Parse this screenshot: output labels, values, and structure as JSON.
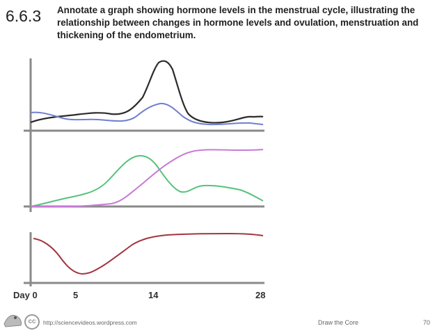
{
  "slide": {
    "code": "6.6.3",
    "description": "Annotate a graph showing hormone levels in the menstrual cycle, illustrating the relationship between changes in hormone levels and ovulation, menstruation and thickening of the endometrium."
  },
  "axis": {
    "day_label": "Day 0",
    "tick_5": "5",
    "tick_14": "14",
    "tick_28": "28"
  },
  "colors": {
    "dark": "#2b2b2b",
    "blue": "#6f7fcf",
    "green": "#55c27a",
    "pink": "#c97ad6",
    "red": "#a3343f",
    "axis": "#8a8a8a"
  },
  "footer": {
    "url": "http://sciencevideos.wordpress.com",
    "title": "Draw the Core",
    "page": "70",
    "cc_icon": "creative-commons-icon",
    "logo_icon": "author-logo-icon"
  }
}
